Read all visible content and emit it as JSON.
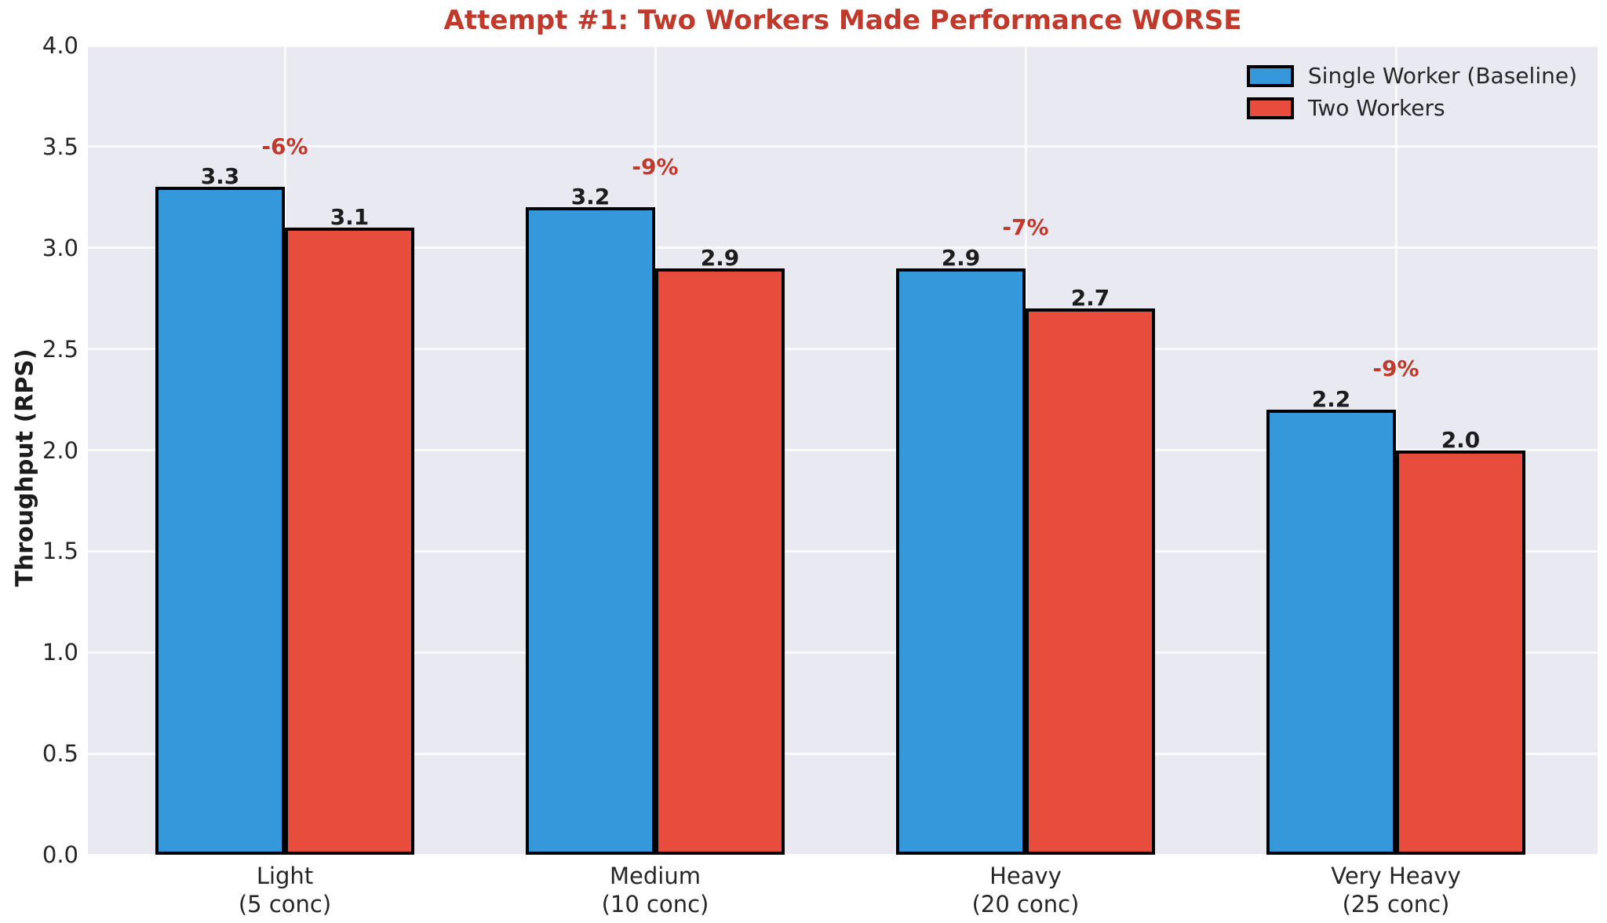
{
  "chart_data": {
    "type": "bar",
    "title": "Attempt #1: Two Workers Made Performance WORSE",
    "ylabel": "Throughput (RPS)",
    "xlabel": "",
    "ylim": [
      0.0,
      4.0
    ],
    "yticks": [
      "0.0",
      "0.5",
      "1.0",
      "1.5",
      "2.0",
      "2.5",
      "3.0",
      "3.5",
      "4.0"
    ],
    "categories": [
      "Light\n(5 conc)",
      "Medium\n(10 conc)",
      "Heavy\n(20 conc)",
      "Very Heavy\n(25 conc)"
    ],
    "series": [
      {
        "name": "Single Worker (Baseline)",
        "color": "#3498db",
        "values": [
          3.3,
          3.2,
          2.9,
          2.2
        ]
      },
      {
        "name": "Two Workers",
        "color": "#e74c3c",
        "values": [
          3.1,
          2.9,
          2.7,
          2.0
        ]
      }
    ],
    "value_labels": [
      [
        "3.3",
        "3.2",
        "2.9",
        "2.2"
      ],
      [
        "3.1",
        "2.9",
        "2.7",
        "2.0"
      ]
    ],
    "annotations": [
      "-6%",
      "-9%",
      "-7%",
      "-9%"
    ],
    "grid": true,
    "legend_position": "upper right"
  },
  "colors": {
    "title": "#c0392b",
    "annotation": "#c0392b",
    "plot_background": "#e9e9f1",
    "gridline": "#ffffff",
    "bar_edge": "#000000",
    "tick_text": "#262626"
  }
}
